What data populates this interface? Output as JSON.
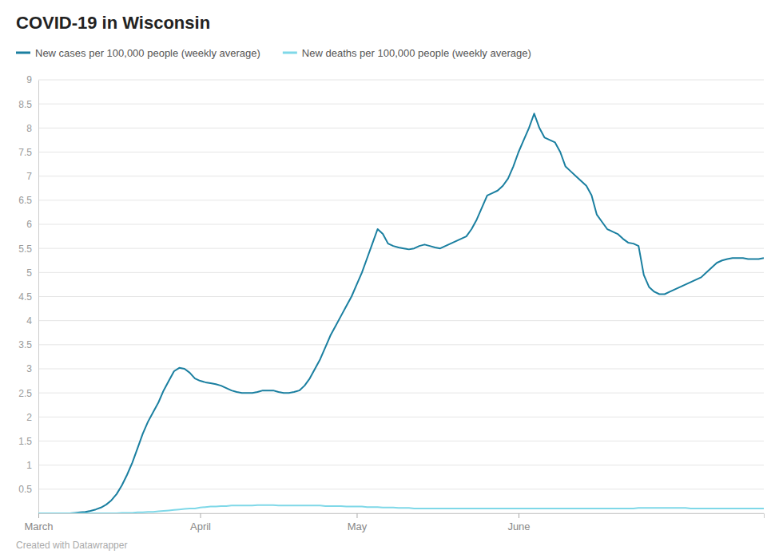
{
  "chart_data": {
    "type": "line",
    "title": "COVID-19 in Wisconsin",
    "x": [
      0,
      1,
      2,
      3,
      4,
      5,
      6,
      7,
      8,
      9,
      10,
      11,
      12,
      13,
      14,
      15,
      16,
      17,
      18,
      19,
      20,
      21,
      22,
      23,
      24,
      25,
      26,
      27,
      28,
      29,
      30,
      31,
      32,
      33,
      34,
      35,
      36,
      37,
      38,
      39,
      40,
      41,
      42,
      43,
      44,
      45,
      46,
      47,
      48,
      49,
      50,
      51,
      52,
      53,
      54,
      55,
      56,
      57,
      58,
      59,
      60,
      61,
      62,
      63,
      64,
      65,
      66,
      67,
      68,
      69,
      70,
      71,
      72,
      73,
      74,
      75,
      76,
      77,
      78,
      79,
      80,
      81,
      82,
      83,
      84,
      85,
      86,
      87,
      88,
      89,
      90,
      91,
      92,
      93,
      94,
      95,
      96,
      97,
      98,
      99,
      100,
      101,
      102,
      103,
      104,
      105,
      106,
      107,
      108,
      109,
      110,
      111,
      112,
      113,
      114,
      115,
      116,
      117,
      118,
      119,
      120,
      121,
      122,
      123,
      124,
      125,
      126,
      127,
      128,
      129,
      130,
      131,
      132,
      133,
      134,
      135,
      136,
      137,
      138,
      139
    ],
    "series": [
      {
        "name": "New cases per 100,000 people (weekly average)",
        "color": "#1a7fa0",
        "values": [
          0.0,
          0.0,
          0.0,
          0.0,
          0.0,
          0.0,
          0.0,
          0.01,
          0.02,
          0.03,
          0.05,
          0.08,
          0.12,
          0.18,
          0.27,
          0.4,
          0.58,
          0.8,
          1.05,
          1.35,
          1.65,
          1.9,
          2.1,
          2.3,
          2.55,
          2.75,
          2.95,
          3.02,
          3.0,
          2.92,
          2.8,
          2.75,
          2.72,
          2.7,
          2.68,
          2.65,
          2.6,
          2.55,
          2.52,
          2.5,
          2.5,
          2.5,
          2.52,
          2.55,
          2.55,
          2.55,
          2.52,
          2.5,
          2.5,
          2.52,
          2.55,
          2.65,
          2.8,
          3.0,
          3.2,
          3.45,
          3.7,
          3.9,
          4.1,
          4.3,
          4.5,
          4.75,
          5.0,
          5.3,
          5.6,
          5.9,
          5.8,
          5.6,
          5.55,
          5.52,
          5.5,
          5.48,
          5.5,
          5.55,
          5.58,
          5.55,
          5.52,
          5.5,
          5.55,
          5.6,
          5.65,
          5.7,
          5.75,
          5.9,
          6.1,
          6.35,
          6.6,
          6.65,
          6.7,
          6.8,
          6.95,
          7.2,
          7.5,
          7.75,
          8.0,
          8.3,
          8.0,
          7.8,
          7.75,
          7.7,
          7.5,
          7.2,
          7.1,
          7.0,
          6.9,
          6.8,
          6.6,
          6.2,
          6.05,
          5.9,
          5.85,
          5.8,
          5.7,
          5.62,
          5.6,
          5.55,
          4.95,
          4.7,
          4.6,
          4.55,
          4.55,
          4.6,
          4.65,
          4.7,
          4.75,
          4.8,
          4.85,
          4.9,
          5.0,
          5.1,
          5.2,
          5.25,
          5.28,
          5.3,
          5.3,
          5.3,
          5.28,
          5.28,
          5.28,
          5.3
        ]
      },
      {
        "name": "New deaths per 100,000 people (weekly average)",
        "color": "#7fd8e8",
        "values": [
          0.0,
          0.0,
          0.0,
          0.0,
          0.0,
          0.0,
          0.0,
          0.0,
          0.0,
          0.0,
          0.0,
          0.0,
          0.0,
          0.0,
          0.0,
          0.0,
          0.01,
          0.01,
          0.01,
          0.02,
          0.02,
          0.03,
          0.03,
          0.04,
          0.05,
          0.06,
          0.07,
          0.08,
          0.09,
          0.1,
          0.1,
          0.12,
          0.13,
          0.14,
          0.14,
          0.15,
          0.15,
          0.16,
          0.16,
          0.16,
          0.16,
          0.16,
          0.17,
          0.17,
          0.17,
          0.17,
          0.16,
          0.16,
          0.16,
          0.16,
          0.16,
          0.16,
          0.16,
          0.16,
          0.16,
          0.15,
          0.15,
          0.15,
          0.15,
          0.14,
          0.14,
          0.14,
          0.14,
          0.13,
          0.13,
          0.13,
          0.12,
          0.12,
          0.12,
          0.11,
          0.11,
          0.11,
          0.1,
          0.1,
          0.1,
          0.1,
          0.1,
          0.1,
          0.1,
          0.1,
          0.1,
          0.1,
          0.1,
          0.1,
          0.1,
          0.1,
          0.1,
          0.1,
          0.1,
          0.1,
          0.1,
          0.1,
          0.1,
          0.1,
          0.1,
          0.1,
          0.1,
          0.1,
          0.1,
          0.1,
          0.1,
          0.1,
          0.1,
          0.1,
          0.1,
          0.1,
          0.1,
          0.1,
          0.1,
          0.1,
          0.1,
          0.1,
          0.1,
          0.1,
          0.1,
          0.11,
          0.11,
          0.11,
          0.11,
          0.11,
          0.11,
          0.11,
          0.11,
          0.11,
          0.11,
          0.1,
          0.1,
          0.1,
          0.1,
          0.1,
          0.1,
          0.1,
          0.1,
          0.1,
          0.1,
          0.1,
          0.1,
          0.1,
          0.1,
          0.1
        ]
      }
    ],
    "xlim": [
      0,
      139
    ],
    "xticks": [
      {
        "value": 0,
        "label": "March"
      },
      {
        "value": 31,
        "label": "April"
      },
      {
        "value": 61,
        "label": "May"
      },
      {
        "value": 92,
        "label": "June"
      }
    ],
    "ylim": [
      0,
      9
    ],
    "yticks": [
      {
        "value": 0,
        "label": null
      },
      0.5,
      1,
      1.5,
      2,
      2.5,
      3,
      3.5,
      4,
      4.5,
      5,
      5.5,
      6,
      6.5,
      7,
      7.5,
      8,
      8.5,
      9
    ],
    "grid": true,
    "legend": "top-left",
    "annotations": [
      "Created with Datawrapper"
    ]
  }
}
